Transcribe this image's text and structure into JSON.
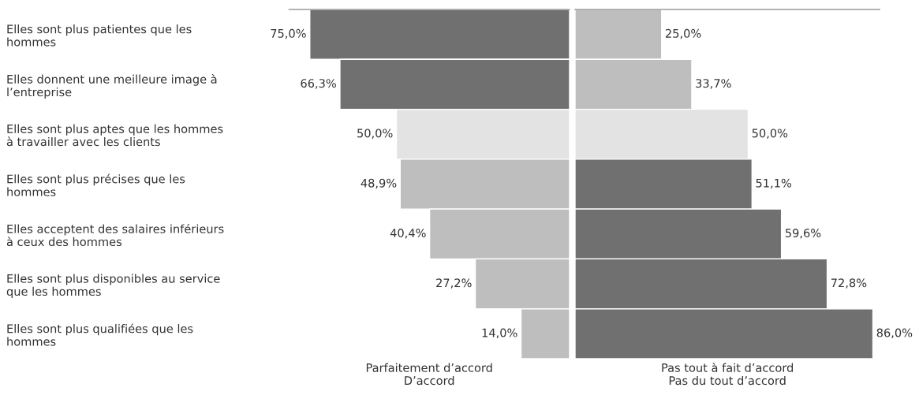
{
  "chart_data": [
    {
      "type": "bar",
      "orientation": "horizontal",
      "xlabel": "Parfaitement d’accord\nD’accord",
      "categories": [
        "Elles sont plus patientes que les\nhommes",
        "Elles donnent une meilleure image à\nl’entreprise",
        "Elles sont plus aptes que les hommes\nà travailler avec les clients",
        "Elles sont plus précises que les\nhommes",
        "Elles acceptent des salaires inférieurs\nà ceux des hommes",
        "Elles sont plus disponibles au service\nque les hommes",
        "Elles sont plus qualifiées que les\nhommes"
      ],
      "values": [
        75.0,
        66.3,
        50.0,
        48.9,
        40.4,
        27.2,
        14.0
      ],
      "value_labels": [
        "75,0%",
        "66,3%",
        "50,0%",
        "48,9%",
        "40,4%",
        "27,2%",
        "14,0%"
      ],
      "colors": [
        "#707070",
        "#707070",
        "#e3e3e3",
        "#bebebe",
        "#bebebe",
        "#bebebe",
        "#bebebe"
      ],
      "xlim": [
        81,
        0
      ]
    },
    {
      "type": "bar",
      "orientation": "horizontal",
      "xlabel": "Pas tout à fait d’accord\nPas du tout d’accord",
      "categories": [
        null,
        null,
        null,
        null,
        null,
        null,
        null
      ],
      "values": [
        25.0,
        33.7,
        50.0,
        51.1,
        59.6,
        72.8,
        86.0
      ],
      "value_labels": [
        "25,0%",
        "33,7%",
        "50,0%",
        "51,1%",
        "59,6%",
        "72,8%",
        "86,0%"
      ],
      "colors": [
        "#bebebe",
        "#bebebe",
        "#e3e3e3",
        "#707070",
        "#707070",
        "#707070",
        "#707070"
      ],
      "xlim": [
        0,
        88
      ]
    }
  ]
}
